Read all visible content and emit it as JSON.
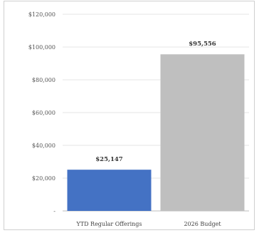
{
  "chart_data": {
    "type": "bar",
    "categories": [
      "YTD Regular Offerings",
      "2026 Budget"
    ],
    "values": [
      25147,
      95556
    ],
    "data_labels": [
      "$25,147",
      "$95,556"
    ],
    "colors": [
      "#4472c4",
      "#bfbfbf"
    ],
    "ylim": [
      0,
      120000
    ],
    "y_ticks": [
      0,
      20000,
      40000,
      60000,
      80000,
      100000,
      120000
    ],
    "y_tick_labels": [
      "-",
      "$20,000",
      "$40,000",
      "$60,000",
      "$80,000",
      "$100,000",
      "$120,000"
    ],
    "grid": true,
    "title": "",
    "xlabel": "",
    "ylabel": ""
  }
}
